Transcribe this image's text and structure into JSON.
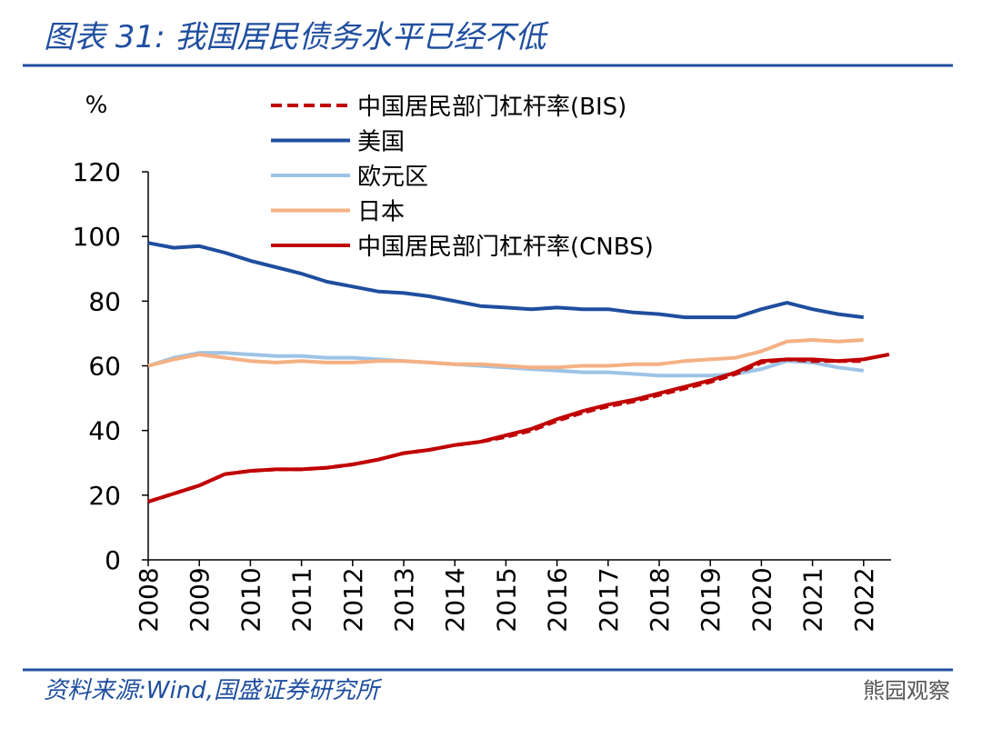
{
  "chart_data": {
    "type": "line",
    "title": "图表 31:  我国居民债务水平已经不低",
    "y_label": "%",
    "source": "资料来源:Wind,国盛证券研究所",
    "watermark": "熊园观察",
    "categories": [
      "2008",
      null,
      "2009",
      null,
      "2010",
      null,
      "2011",
      null,
      "2012",
      null,
      "2013",
      null,
      "2014",
      null,
      "2015",
      null,
      "2016",
      null,
      "2017",
      null,
      "2018",
      null,
      "2019",
      null,
      "2020",
      null,
      "2021",
      null,
      "2022",
      null
    ],
    "series": [
      {
        "name": "中国居民部门杠杆率(BIS)",
        "color": "#c00000",
        "dashed": true,
        "values": [
          18,
          20.5,
          23,
          26.5,
          27.5,
          28,
          28,
          28.5,
          29.5,
          31,
          33,
          34,
          35.5,
          36.5,
          38,
          40,
          43,
          45.5,
          47.5,
          49,
          51,
          53,
          55,
          57.5,
          61,
          62,
          61.5,
          61.5,
          61.5,
          null
        ]
      },
      {
        "name": "美国",
        "color": "#1f4e9f",
        "dashed": false,
        "values": [
          98,
          96.5,
          97,
          95,
          92.5,
          90.5,
          88.5,
          86,
          84.5,
          83,
          82.5,
          81.5,
          80,
          78.5,
          78,
          77.5,
          78,
          77.5,
          77.5,
          76.5,
          76,
          75,
          75,
          75,
          77.5,
          79.5,
          77.5,
          76,
          75,
          null
        ]
      },
      {
        "name": "欧元区",
        "color": "#9dc3e6",
        "dashed": false,
        "values": [
          60,
          62.5,
          64,
          64,
          63.5,
          63,
          63,
          62.5,
          62.5,
          62,
          61.5,
          61,
          60.5,
          60,
          59.5,
          59,
          58.5,
          58,
          58,
          57.5,
          57,
          57,
          57,
          57.5,
          59,
          61.5,
          61,
          59.5,
          58.5,
          null
        ]
      },
      {
        "name": "日本",
        "color": "#f4b183",
        "dashed": false,
        "values": [
          60,
          62,
          63.5,
          62.5,
          61.5,
          61,
          61.5,
          61,
          61,
          61.5,
          61.5,
          61,
          60.5,
          60.5,
          60,
          59.5,
          59.5,
          60,
          60,
          60.5,
          60.5,
          61.5,
          62,
          62.5,
          64.5,
          67.5,
          68,
          67.5,
          68,
          null
        ]
      },
      {
        "name": "中国居民部门杠杆率(CNBS)",
        "color": "#c00000",
        "dashed": false,
        "values": [
          18,
          20.5,
          23,
          26.5,
          27.5,
          28,
          28,
          28.5,
          29.5,
          31,
          33,
          34,
          35.5,
          36.5,
          38.5,
          40.5,
          43.5,
          46,
          48,
          49.5,
          51.5,
          53.5,
          55.5,
          58,
          61.5,
          62,
          62,
          61.5,
          62,
          63.5
        ]
      }
    ],
    "ylim": [
      0,
      120
    ],
    "yticks": [
      0,
      20,
      40,
      60,
      80,
      100,
      120
    ],
    "grid": false
  }
}
